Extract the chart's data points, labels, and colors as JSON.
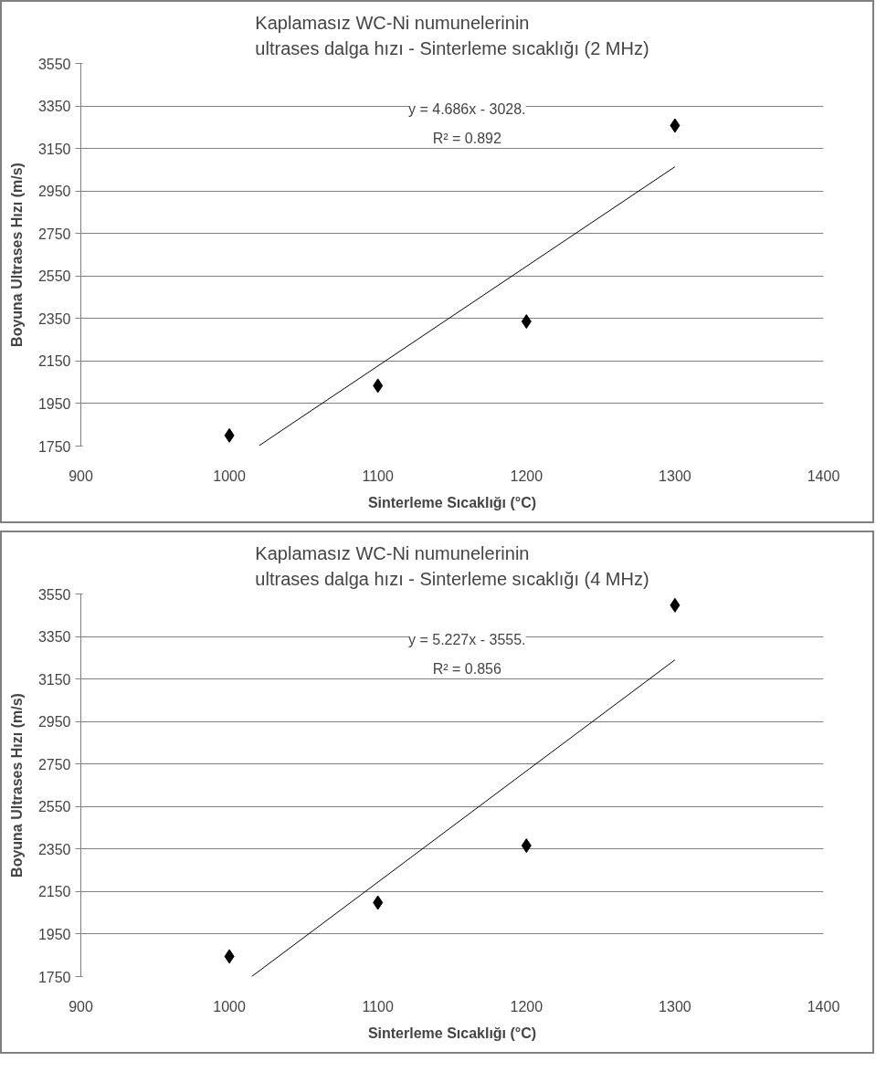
{
  "chart_data": [
    {
      "type": "scatter",
      "title": "Kaplamasız WC-Ni numunelerinin\nultrases dalga hızı - Sinterleme sıcaklığı (2 MHz)",
      "xlabel": "Sinterleme Sıcaklığı (°C)",
      "ylabel": "Boyuna Ultrases Hızı (m/s)",
      "x": [
        1000,
        1100,
        1200,
        1300
      ],
      "series": [
        {
          "type": "scatter",
          "color": "#000000",
          "marker": "diamond",
          "values": [
            1800,
            2034,
            2336,
            3258
          ]
        },
        {
          "type": "line",
          "color": "#000000",
          "x": [
            1020,
            1300
          ],
          "values": [
            1752,
            3064
          ]
        }
      ],
      "annotations": [
        "y = 4.686x - 3028.",
        "R² = 0.892"
      ],
      "xlim": [
        900,
        1400
      ],
      "xticks": [
        900,
        1000,
        1100,
        1200,
        1300,
        1400
      ],
      "ylim": [
        1750,
        3550
      ],
      "yticks": [
        1750,
        1950,
        2150,
        2350,
        2550,
        2750,
        2950,
        3150,
        3350,
        3550
      ],
      "grid": "y",
      "line_style": "solid"
    },
    {
      "type": "scatter",
      "title": "Kaplamasız WC-Ni numunelerinin\nultrases dalga hızı - Sinterleme sıcaklığı (4 MHz)",
      "xlabel": "Sinterleme Sıcaklığı (°C)",
      "ylabel": "Boyuna Ultrases Hızı (m/s)",
      "x": [
        1000,
        1100,
        1200,
        1300
      ],
      "series": [
        {
          "type": "scatter",
          "color": "#000000",
          "marker": "diamond",
          "values": [
            1845,
            2098,
            2366,
            3497
          ]
        },
        {
          "type": "line",
          "color": "#000000",
          "x": [
            1015,
            1300
          ],
          "values": [
            1750,
            3240
          ]
        }
      ],
      "annotations": [
        "y = 5.227x - 3555.",
        "R² = 0.856"
      ],
      "xlim": [
        900,
        1400
      ],
      "xticks": [
        900,
        1000,
        1100,
        1200,
        1300,
        1400
      ],
      "ylim": [
        1750,
        3550
      ],
      "yticks": [
        1750,
        1950,
        2150,
        2350,
        2550,
        2750,
        2950,
        3150,
        3350,
        3550
      ],
      "grid": "y",
      "line_style": "solid"
    }
  ]
}
